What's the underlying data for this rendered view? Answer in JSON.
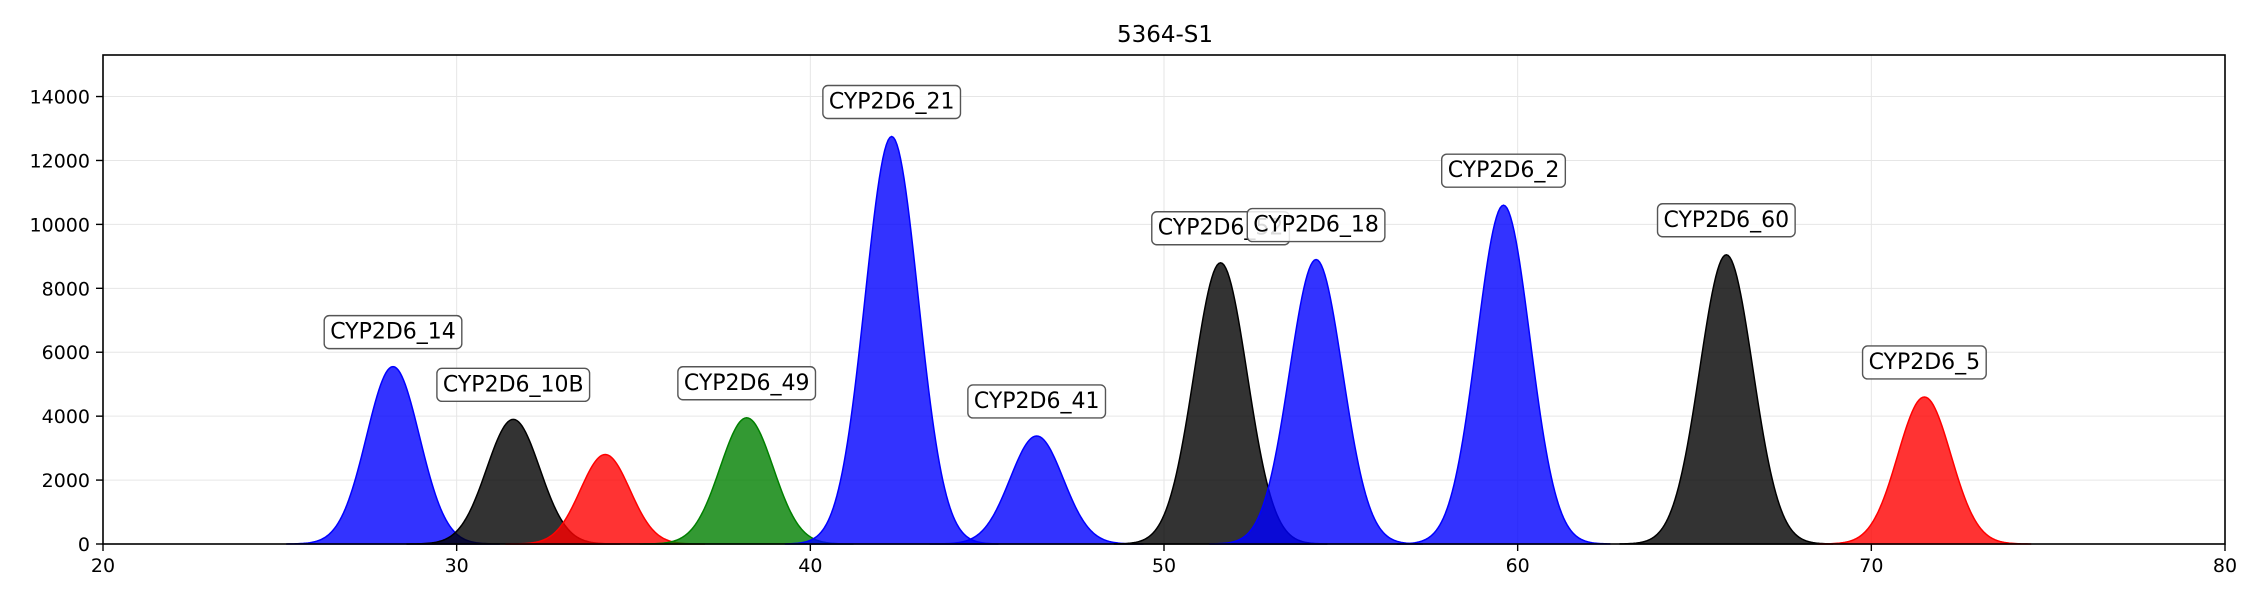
{
  "chart_data": {
    "type": "area",
    "title": "5364-S1",
    "xlabel": "",
    "ylabel": "",
    "xlim": [
      20,
      80
    ],
    "ylim": [
      0,
      15300
    ],
    "x_ticks": [
      20,
      30,
      40,
      50,
      60,
      70,
      80
    ],
    "y_ticks": [
      0,
      2000,
      4000,
      6000,
      8000,
      10000,
      12000,
      14000
    ],
    "grid": true,
    "peaks": [
      {
        "label": "CYP2D6_14",
        "x": 28.2,
        "y": 5550,
        "sigma": 0.75,
        "color": "#0000ff"
      },
      {
        "label": "CYP2D6_10B",
        "x": 31.6,
        "y": 3900,
        "sigma": 0.75,
        "color": "#000000"
      },
      {
        "label": "",
        "x": 34.2,
        "y": 2800,
        "sigma": 0.7,
        "color": "#ff0000"
      },
      {
        "label": "CYP2D6_49",
        "x": 38.2,
        "y": 3950,
        "sigma": 0.75,
        "color": "#008000"
      },
      {
        "label": "CYP2D6_21",
        "x": 42.3,
        "y": 12750,
        "sigma": 0.75,
        "color": "#0000ff"
      },
      {
        "label": "CYP2D6_41",
        "x": 46.4,
        "y": 3380,
        "sigma": 0.75,
        "color": "#0000ff"
      },
      {
        "label": "CYP2D6_52",
        "x": 51.6,
        "y": 8800,
        "sigma": 0.75,
        "color": "#000000"
      },
      {
        "label": "CYP2D6_18",
        "x": 54.3,
        "y": 8900,
        "sigma": 0.75,
        "color": "#0000ff"
      },
      {
        "label": "CYP2D6_2",
        "x": 59.6,
        "y": 10600,
        "sigma": 0.75,
        "color": "#0000ff"
      },
      {
        "label": "CYP2D6_60",
        "x": 65.9,
        "y": 9050,
        "sigma": 0.75,
        "color": "#000000"
      },
      {
        "label": "CYP2D6_5",
        "x": 71.5,
        "y": 4600,
        "sigma": 0.75,
        "color": "#ff0000"
      }
    ]
  }
}
